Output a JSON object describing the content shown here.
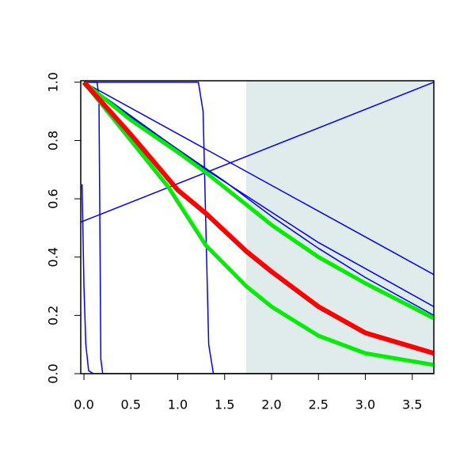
{
  "chart_data": {
    "type": "line",
    "xlim": [
      -0.034,
      3.73
    ],
    "ylim": [
      0,
      1.005
    ],
    "xticks": [
      {
        "value": 0,
        "label": "0.0"
      },
      {
        "value": 0.5,
        "label": "0.5"
      },
      {
        "value": 1,
        "label": "1.0"
      },
      {
        "value": 1.5,
        "label": "1.5"
      },
      {
        "value": 2,
        "label": "2.0"
      },
      {
        "value": 2.5,
        "label": "2.5"
      },
      {
        "value": 3,
        "label": "3.0"
      },
      {
        "value": 3.5,
        "label": "3.5"
      }
    ],
    "yticks": [
      {
        "value": 0,
        "label": "0.0"
      },
      {
        "value": 0.2,
        "label": "0.2"
      },
      {
        "value": 0.4,
        "label": "0.4"
      },
      {
        "value": 0.6,
        "label": "0.6"
      },
      {
        "value": 0.8,
        "label": "0.8"
      },
      {
        "value": 1,
        "label": "1.0"
      }
    ],
    "shade": {
      "from": 1.73,
      "color": "#e0ecec"
    },
    "series": [
      {
        "color": "#0000ff",
        "line_width": 1.5,
        "x": [
          0,
          3.73
        ],
        "values": [
          1,
          0.34
        ]
      },
      {
        "color": "#0000ff",
        "line_width": 1.5,
        "x": [
          0,
          1.3,
          2.5,
          3.73
        ],
        "values": [
          1,
          0.7,
          0.45,
          0.23
        ]
      },
      {
        "color": "#0000ff",
        "line_width": 1.5,
        "x": [
          0,
          0.5,
          1,
          1.5,
          2,
          2.5,
          3,
          3.73
        ],
        "values": [
          1,
          0.88,
          0.77,
          0.66,
          0.54,
          0.43,
          0.33,
          0.2
        ]
      },
      {
        "color": "#0000ff",
        "line_width": 1.5,
        "x": [
          -0.034,
          3.73
        ],
        "values": [
          0.52,
          1
        ]
      },
      {
        "color": "#0000ff",
        "line_width": 1.5,
        "x": [
          0,
          0.14,
          0.16,
          0.17,
          0.18,
          0.2,
          3.73
        ],
        "values": [
          1,
          1,
          0.95,
          0.5,
          0.05,
          0,
          0
        ]
      },
      {
        "color": "#0000ff",
        "line_width": 1.5,
        "x": [
          0,
          1.22,
          1.27,
          1.3,
          1.33,
          1.38,
          3.73
        ],
        "values": [
          1,
          1,
          0.9,
          0.5,
          0.1,
          0,
          0
        ]
      },
      {
        "color": "#0000ff",
        "line_width": 1.5,
        "x": [
          -0.02,
          0,
          0.02,
          0.05,
          0.1,
          3.73
        ],
        "values": [
          0.65,
          0.3,
          0.1,
          0.01,
          0,
          0
        ]
      },
      {
        "color": "#00ee00",
        "line_width": 5,
        "x": [
          0,
          0.5,
          1,
          1.3,
          1.73,
          2,
          2.5,
          3,
          3.73
        ],
        "values": [
          1,
          0.87,
          0.76,
          0.69,
          0.58,
          0.51,
          0.4,
          0.31,
          0.19
        ]
      },
      {
        "color": "#00ee00",
        "line_width": 5,
        "x": [
          0,
          0.5,
          0.9,
          1.3,
          1.73,
          2,
          2.5,
          3,
          3.73
        ],
        "values": [
          1,
          0.8,
          0.64,
          0.44,
          0.3,
          0.23,
          0.13,
          0.07,
          0.03
        ]
      },
      {
        "color": "#ff0000",
        "line_width": 6,
        "x": [
          0,
          0.5,
          1,
          1.3,
          1.73,
          2,
          2.5,
          3,
          3.73
        ],
        "values": [
          1,
          0.82,
          0.63,
          0.55,
          0.42,
          0.35,
          0.23,
          0.14,
          0.07
        ]
      }
    ]
  }
}
